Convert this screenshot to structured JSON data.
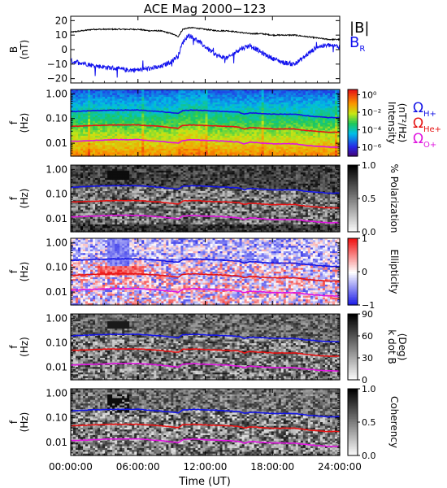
{
  "title": "ACE Mag 2000−123",
  "colors": {
    "bmag": "#000000",
    "br": "#1010ee",
    "h_plus": "#1414e6",
    "he_plus": "#e61414",
    "o_plus": "#e014e0"
  },
  "x_axis": {
    "label": "Time (UT)",
    "range_hours": [
      0,
      24
    ],
    "ticks": [
      {
        "hour": 0,
        "label": "00:00:00"
      },
      {
        "hour": 6,
        "label": "06:00:00"
      },
      {
        "hour": 12,
        "label": "12:00:00"
      },
      {
        "hour": 18,
        "label": "18:00:00"
      },
      {
        "hour": 24,
        "label": "24:00:00"
      }
    ]
  },
  "chart_data": [
    {
      "type": "line",
      "panel": "magnetic-field",
      "ylabel": [
        "B",
        "(nT)"
      ],
      "ylim": [
        -23,
        23
      ],
      "yticks": [
        {
          "v": 20,
          "label": "20"
        },
        {
          "v": 10,
          "label": "10"
        },
        {
          "v": 0,
          "label": "0"
        },
        {
          "v": -10,
          "label": "−10"
        },
        {
          "v": -20,
          "label": "−20"
        }
      ],
      "legend": [
        {
          "text": "|B|",
          "series": "bmag"
        },
        {
          "text": "B",
          "sub": "R",
          "series": "br"
        }
      ],
      "series": [
        {
          "name": "|B|",
          "color_key": "bmag",
          "x": [
            0,
            1,
            2,
            3,
            4,
            5,
            6,
            7,
            8,
            9,
            9.6,
            10,
            10.5,
            11,
            12,
            13,
            14,
            15,
            16,
            17,
            18,
            19,
            20,
            21,
            22,
            23,
            24
          ],
          "y": [
            12,
            13,
            14,
            14,
            14,
            14,
            14,
            13,
            13,
            11,
            9,
            14,
            15,
            15,
            14,
            13,
            13,
            12,
            11,
            11,
            10,
            10,
            10,
            9,
            8,
            7,
            7
          ]
        },
        {
          "name": "B_R",
          "color_key": "br",
          "x": [
            0,
            1,
            2,
            3,
            4,
            5,
            6,
            7,
            8,
            9,
            9.6,
            10,
            10.5,
            11,
            12,
            13,
            14,
            15,
            16,
            17,
            18,
            19,
            20,
            21,
            22,
            23,
            24
          ],
          "y": [
            -8,
            -9,
            -11,
            -12,
            -13,
            -14,
            -14,
            -13,
            -12,
            -8,
            -4,
            5,
            10,
            8,
            2,
            -4,
            -6,
            0,
            3,
            -2,
            -6,
            -9,
            -10,
            -4,
            2,
            3,
            2
          ]
        }
      ]
    },
    {
      "type": "heatmap",
      "panel": "intensity",
      "ylabel": [
        "f",
        "(Hz)"
      ],
      "yscale": "log",
      "ylim": [
        0.003,
        1.5
      ],
      "yticks": [
        {
          "v": 1.0,
          "label": "1.00"
        },
        {
          "v": 0.1,
          "label": "0.10"
        },
        {
          "v": 0.01,
          "label": "0.01"
        }
      ],
      "colorbar": {
        "scale": "log",
        "colormap": "rainbow",
        "label": [
          "Intensity",
          "(nT²/Hz)"
        ],
        "ticks": [
          {
            "exp": 0,
            "label": "10⁰"
          },
          {
            "exp": -2,
            "label": "10⁻²"
          },
          {
            "exp": -4,
            "label": "10⁻⁴"
          },
          {
            "exp": -6,
            "label": "10⁻⁶"
          }
        ]
      },
      "legend": [
        {
          "text": "Ω",
          "sub": "H+",
          "color_key": "h_plus"
        },
        {
          "text": "Ω",
          "sub": "He+",
          "color_key": "he_plus"
        },
        {
          "text": "Ω",
          "sub": "O+",
          "color_key": "o_plus"
        }
      ]
    },
    {
      "type": "heatmap",
      "panel": "polarization",
      "ylabel": [
        "f",
        "(Hz)"
      ],
      "yscale": "log",
      "ylim": [
        0.003,
        1.5
      ],
      "yticks": [
        {
          "v": 1.0,
          "label": "1.00"
        },
        {
          "v": 0.1,
          "label": "0.10"
        },
        {
          "v": 0.01,
          "label": "0.01"
        }
      ],
      "colorbar": {
        "scale": "linear",
        "colormap": "gray",
        "label": [
          "% Polarization"
        ],
        "range": [
          0,
          1
        ],
        "ticks": [
          {
            "v": 1.0,
            "label": "1.0"
          },
          {
            "v": 0.5,
            "label": "0.5"
          },
          {
            "v": 0.0,
            "label": "0.0"
          }
        ]
      }
    },
    {
      "type": "heatmap",
      "panel": "ellipticity",
      "ylabel": [
        "f",
        "(Hz)"
      ],
      "yscale": "log",
      "ylim": [
        0.003,
        1.5
      ],
      "yticks": [
        {
          "v": 1.0,
          "label": "1.00"
        },
        {
          "v": 0.1,
          "label": "0.10"
        },
        {
          "v": 0.01,
          "label": "0.01"
        }
      ],
      "colorbar": {
        "scale": "linear",
        "colormap": "bwr",
        "label": [
          "Ellipticity"
        ],
        "range": [
          -1,
          1
        ],
        "ticks": [
          {
            "v": 1,
            "label": "1"
          },
          {
            "v": 0,
            "label": "0"
          },
          {
            "v": -1,
            "label": "−1"
          }
        ]
      }
    },
    {
      "type": "heatmap",
      "panel": "k-dot-b",
      "ylabel": [
        "f",
        "(Hz)"
      ],
      "yscale": "log",
      "ylim": [
        0.003,
        1.5
      ],
      "yticks": [
        {
          "v": 1.0,
          "label": "1.00"
        },
        {
          "v": 0.1,
          "label": "0.10"
        },
        {
          "v": 0.01,
          "label": "0.01"
        }
      ],
      "colorbar": {
        "scale": "linear",
        "colormap": "gray",
        "label": [
          "k dot B",
          "(Deg)"
        ],
        "range": [
          0,
          90
        ],
        "ticks": [
          {
            "v": 90,
            "label": "90"
          },
          {
            "v": 60,
            "label": "60"
          },
          {
            "v": 30,
            "label": "30"
          },
          {
            "v": 0,
            "label": "0"
          }
        ]
      }
    },
    {
      "type": "heatmap",
      "panel": "coherency",
      "ylabel": [
        "f",
        "(Hz)"
      ],
      "yscale": "log",
      "ylim": [
        0.003,
        1.5
      ],
      "yticks": [
        {
          "v": 1.0,
          "label": "1.00"
        },
        {
          "v": 0.1,
          "label": "0.10"
        },
        {
          "v": 0.01,
          "label": "0.01"
        }
      ],
      "colorbar": {
        "scale": "linear",
        "colormap": "gray",
        "label": [
          "Coherency"
        ],
        "range": [
          0,
          1
        ],
        "ticks": [
          {
            "v": 1.0,
            "label": "1.0"
          },
          {
            "v": 0.5,
            "label": "0.5"
          },
          {
            "v": 0.0,
            "label": "0.0"
          }
        ]
      }
    }
  ],
  "gyrofrequency_lines": [
    {
      "name": "ΩH+",
      "color_key": "h_plus",
      "x": [
        0,
        2,
        4,
        6,
        8,
        9.6,
        10,
        11,
        12,
        14,
        15,
        15.5,
        16,
        18,
        20,
        21,
        22,
        23,
        24
      ],
      "y": [
        0.19,
        0.21,
        0.22,
        0.22,
        0.19,
        0.16,
        0.21,
        0.22,
        0.21,
        0.19,
        0.18,
        0.15,
        0.17,
        0.15,
        0.15,
        0.13,
        0.12,
        0.11,
        0.11
      ]
    },
    {
      "name": "ΩHe+",
      "color_key": "he_plus",
      "x": [
        0,
        2,
        4,
        6,
        8,
        9.6,
        10,
        11,
        12,
        14,
        15,
        15.5,
        16,
        18,
        20,
        21,
        22,
        23,
        24
      ],
      "y": [
        0.048,
        0.052,
        0.055,
        0.055,
        0.048,
        0.04,
        0.053,
        0.055,
        0.052,
        0.048,
        0.045,
        0.038,
        0.043,
        0.038,
        0.038,
        0.033,
        0.03,
        0.028,
        0.028
      ]
    },
    {
      "name": "ΩO+",
      "color_key": "o_plus",
      "x": [
        0,
        2,
        4,
        6,
        8,
        9.6,
        10,
        11,
        12,
        14,
        15,
        15.5,
        16,
        18,
        20,
        21,
        22,
        23,
        24
      ],
      "y": [
        0.012,
        0.013,
        0.014,
        0.014,
        0.012,
        0.01,
        0.013,
        0.014,
        0.013,
        0.012,
        0.011,
        0.0095,
        0.011,
        0.0095,
        0.0095,
        0.0083,
        0.0075,
        0.007,
        0.007
      ]
    }
  ]
}
